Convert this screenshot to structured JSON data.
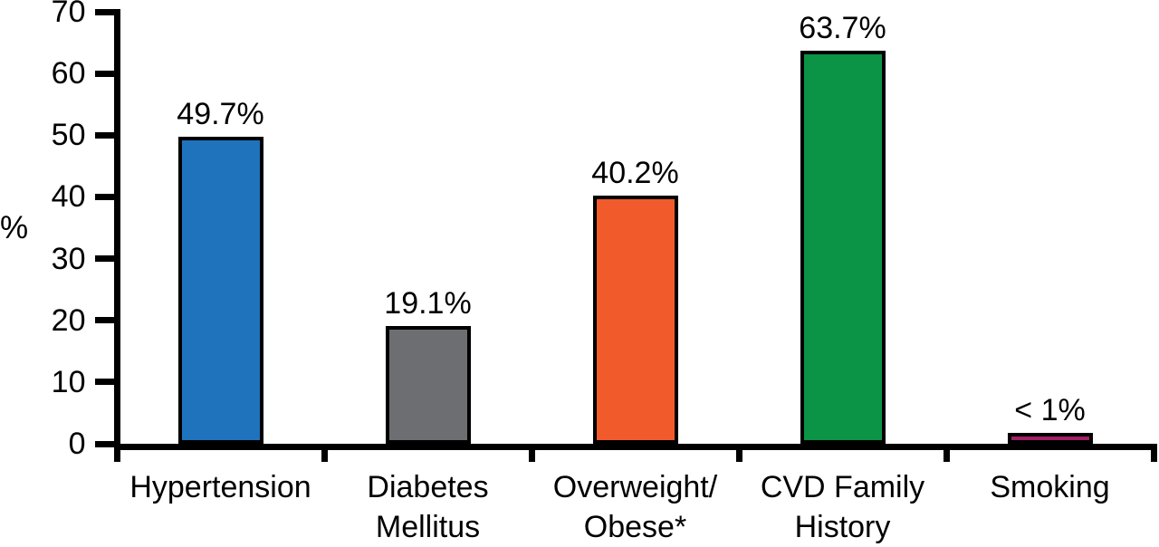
{
  "chart_data": {
    "type": "bar",
    "title": "",
    "xlabel": "",
    "ylabel": "%",
    "ylim": [
      0,
      70
    ],
    "yticks": [
      0,
      10,
      20,
      30,
      40,
      50,
      60,
      70
    ],
    "grid": false,
    "legend": null,
    "categories": [
      "Hypertension",
      "Diabetes Mellitus",
      "Overweight/Obese*",
      "CVD Family History",
      "Smoking"
    ],
    "category_label_lines": [
      [
        "Hypertension"
      ],
      [
        "Diabetes",
        "Mellitus"
      ],
      [
        "Overweight/",
        "Obese*"
      ],
      [
        "CVD Family",
        "History"
      ],
      [
        "Smoking"
      ]
    ],
    "values": [
      49.7,
      19.1,
      40.2,
      63.7,
      0.9
    ],
    "value_labels": [
      "49.7%",
      "19.1%",
      "40.2%",
      "63.7%",
      "< 1%"
    ],
    "bar_render_heights": [
      49.7,
      19.1,
      40.2,
      63.7,
      1.8
    ],
    "bar_colors": [
      "#1F73BD",
      "#6D6E71",
      "#F15B2B",
      "#0B9445",
      "#A22066"
    ],
    "bar_border_color": "#000000",
    "axis_color": "#000000",
    "text_color": "#000000",
    "background_color": "#ffffff"
  }
}
